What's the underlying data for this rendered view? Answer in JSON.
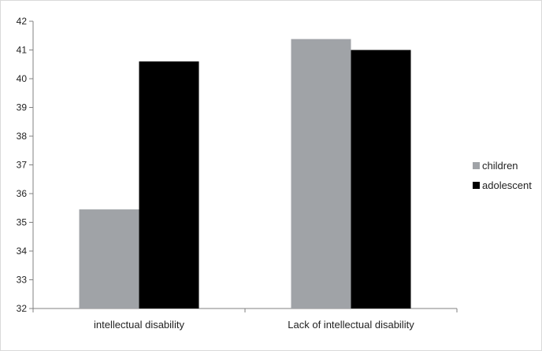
{
  "chart_data": {
    "type": "bar",
    "title": "",
    "xlabel": "",
    "ylabel": "",
    "categories": [
      "intellectual disability",
      "Lack of intellectual disability"
    ],
    "series": [
      {
        "name": "children",
        "color": "#a0a3a7",
        "values": [
          35.45,
          41.38
        ]
      },
      {
        "name": "adolescent",
        "color": "#000000",
        "values": [
          40.6,
          41.0
        ]
      }
    ],
    "ylim": [
      32,
      42
    ],
    "yticks": [
      32,
      33,
      34,
      35,
      36,
      37,
      38,
      39,
      40,
      41,
      42
    ],
    "grid": false,
    "legend_position": "right"
  }
}
